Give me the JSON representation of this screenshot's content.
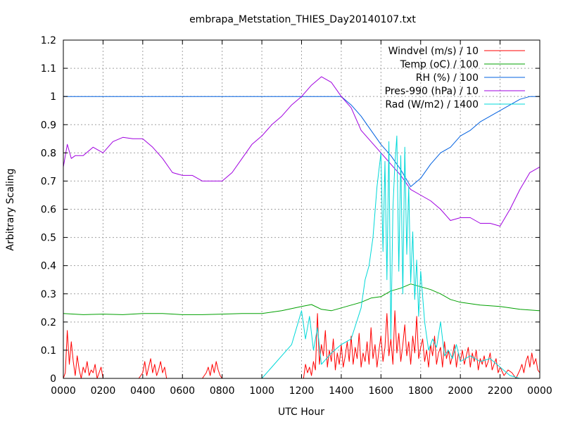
{
  "chart_data": {
    "type": "line",
    "title": "embrapa_Metstation_THIES_Day20140107.txt",
    "xlabel": "UTC Hour",
    "ylabel": "Arbitrary Scaling",
    "xlim": [
      0,
      24
    ],
    "ylim": [
      0,
      1.2
    ],
    "grid": true,
    "legend_position": "top-right",
    "x_ticks": [
      {
        "value": 0,
        "label": "0000"
      },
      {
        "value": 2,
        "label": "0200"
      },
      {
        "value": 4,
        "label": "0400"
      },
      {
        "value": 6,
        "label": "0600"
      },
      {
        "value": 8,
        "label": "0800"
      },
      {
        "value": 10,
        "label": "1000"
      },
      {
        "value": 12,
        "label": "1200"
      },
      {
        "value": 14,
        "label": "1400"
      },
      {
        "value": 16,
        "label": "1600"
      },
      {
        "value": 18,
        "label": "1800"
      },
      {
        "value": 20,
        "label": "2000"
      },
      {
        "value": 22,
        "label": "2200"
      },
      {
        "value": 24,
        "label": "0000"
      }
    ],
    "y_ticks": [
      {
        "value": 0,
        "label": "0"
      },
      {
        "value": 0.1,
        "label": "0.1"
      },
      {
        "value": 0.2,
        "label": "0.2"
      },
      {
        "value": 0.3,
        "label": "0.3"
      },
      {
        "value": 0.4,
        "label": "0.4"
      },
      {
        "value": 0.5,
        "label": "0.5"
      },
      {
        "value": 0.6,
        "label": "0.6"
      },
      {
        "value": 0.7,
        "label": "0.7"
      },
      {
        "value": 0.8,
        "label": "0.8"
      },
      {
        "value": 0.9,
        "label": "0.9"
      },
      {
        "value": 1.0,
        "label": "1"
      },
      {
        "value": 1.1,
        "label": "1.1"
      },
      {
        "value": 1.2,
        "label": "1.2"
      }
    ],
    "series": [
      {
        "name": "Windvel (m/s) / 10",
        "color": "#ff0000",
        "x": [
          0,
          0.1,
          0.2,
          0.3,
          0.4,
          0.5,
          0.6,
          0.7,
          0.8,
          0.9,
          1.0,
          1.1,
          1.2,
          1.3,
          1.4,
          1.5,
          1.6,
          1.7,
          1.8,
          1.9,
          2.0,
          2.2,
          2.4,
          2.6,
          2.8,
          3.0,
          3.2,
          3.4,
          3.6,
          3.8,
          4.0,
          4.1,
          4.2,
          4.3,
          4.4,
          4.5,
          4.6,
          4.7,
          4.8,
          4.9,
          5.0,
          5.1,
          5.2,
          5.4,
          5.6,
          5.8,
          6.0,
          6.2,
          6.4,
          6.6,
          6.8,
          7.0,
          7.2,
          7.3,
          7.4,
          7.5,
          7.6,
          7.7,
          7.8,
          7.9,
          8.0,
          8.5,
          9.0,
          9.5,
          10.0,
          10.5,
          11.0,
          11.5,
          12.0,
          12.1,
          12.2,
          12.3,
          12.4,
          12.5,
          12.6,
          12.7,
          12.8,
          12.9,
          13.0,
          13.1,
          13.2,
          13.3,
          13.4,
          13.5,
          13.6,
          13.7,
          13.8,
          13.9,
          14.0,
          14.1,
          14.2,
          14.3,
          14.4,
          14.5,
          14.6,
          14.7,
          14.8,
          14.9,
          15.0,
          15.1,
          15.2,
          15.3,
          15.4,
          15.5,
          15.6,
          15.7,
          15.8,
          15.9,
          16.0,
          16.1,
          16.2,
          16.3,
          16.4,
          16.5,
          16.6,
          16.7,
          16.8,
          16.9,
          17.0,
          17.1,
          17.2,
          17.3,
          17.4,
          17.5,
          17.6,
          17.7,
          17.8,
          17.9,
          18.0,
          18.1,
          18.2,
          18.3,
          18.4,
          18.5,
          18.6,
          18.7,
          18.8,
          18.9,
          19.0,
          19.1,
          19.2,
          19.3,
          19.4,
          19.5,
          19.6,
          19.7,
          19.8,
          19.9,
          20.0,
          20.1,
          20.2,
          20.3,
          20.4,
          20.5,
          20.6,
          20.7,
          20.8,
          20.9,
          21.0,
          21.1,
          21.2,
          21.3,
          21.4,
          21.5,
          21.6,
          21.7,
          21.8,
          21.9,
          22.0,
          22.2,
          22.4,
          22.6,
          22.8,
          23.0,
          23.1,
          23.2,
          23.3,
          23.4,
          23.5,
          23.6,
          23.7,
          23.8,
          23.9,
          24.0
        ],
        "y": [
          0,
          0.02,
          0.17,
          0.05,
          0.13,
          0.06,
          0.01,
          0.08,
          0.03,
          0,
          0.04,
          0.02,
          0.06,
          0.01,
          0.03,
          0.02,
          0.05,
          0,
          0.02,
          0.04,
          0,
          0,
          0,
          0,
          0,
          0,
          0,
          0,
          0,
          0,
          0.02,
          0.06,
          0.01,
          0.04,
          0.07,
          0.02,
          0.05,
          0.01,
          0.03,
          0.06,
          0.02,
          0.04,
          0,
          0,
          0,
          0,
          0,
          0,
          0,
          0,
          0,
          0,
          0.02,
          0.04,
          0.01,
          0.05,
          0.02,
          0.06,
          0.03,
          0.01,
          0,
          0,
          0,
          0,
          0,
          0,
          0,
          0,
          0,
          0,
          0.05,
          0.02,
          0.04,
          0.01,
          0.06,
          0.03,
          0.23,
          0.05,
          0.12,
          0.08,
          0.17,
          0.04,
          0.1,
          0.06,
          0.14,
          0.03,
          0.09,
          0.05,
          0.12,
          0.04,
          0.08,
          0.13,
          0.06,
          0.15,
          0.05,
          0.11,
          0.07,
          0.16,
          0.04,
          0.09,
          0.06,
          0.13,
          0.05,
          0.18,
          0.07,
          0.12,
          0.04,
          0.1,
          0.15,
          0.06,
          0.11,
          0.23,
          0.08,
          0.14,
          0.05,
          0.24,
          0.09,
          0.16,
          0.06,
          0.12,
          0.19,
          0.08,
          0.13,
          0.05,
          0.15,
          0.09,
          0.22,
          0.07,
          0.11,
          0.14,
          0.06,
          0.1,
          0.04,
          0.12,
          0.08,
          0.15,
          0.05,
          0.09,
          0.11,
          0.04,
          0.13,
          0.07,
          0.1,
          0.05,
          0.08,
          0.12,
          0.04,
          0.09,
          0.06,
          0.1,
          0.05,
          0.08,
          0.11,
          0.04,
          0.09,
          0.06,
          0.1,
          0.03,
          0.07,
          0.05,
          0.08,
          0.04,
          0.06,
          0.09,
          0.03,
          0.05,
          0.07,
          0.02,
          0.04,
          0.01,
          0.03,
          0.02,
          0,
          0.03,
          0.05,
          0.02,
          0.06,
          0.08,
          0.04,
          0.09,
          0.05,
          0.07,
          0.03,
          0.02
        ]
      },
      {
        "name": "Temp (oC) / 100",
        "color": "#00a000",
        "x": [
          0,
          1,
          2,
          3,
          4,
          5,
          6,
          7,
          8,
          9,
          10,
          11,
          12,
          12.5,
          13,
          13.5,
          14,
          14.5,
          15,
          15.5,
          16,
          16.5,
          17,
          17.5,
          18,
          18.5,
          19,
          19.5,
          20,
          21,
          22,
          23,
          24
        ],
        "y": [
          0.23,
          0.226,
          0.228,
          0.226,
          0.23,
          0.23,
          0.226,
          0.226,
          0.228,
          0.23,
          0.23,
          0.24,
          0.255,
          0.262,
          0.245,
          0.24,
          0.25,
          0.26,
          0.27,
          0.285,
          0.29,
          0.31,
          0.32,
          0.335,
          0.325,
          0.315,
          0.3,
          0.28,
          0.27,
          0.26,
          0.255,
          0.245,
          0.24
        ]
      },
      {
        "name": "RH (%) / 100",
        "color": "#0060e0",
        "x": [
          0,
          1,
          2,
          3,
          4,
          5,
          6,
          7,
          8,
          9,
          10,
          11,
          12,
          13,
          14,
          14.5,
          15,
          15.5,
          16,
          16.5,
          17,
          17.5,
          18,
          18.5,
          19,
          19.5,
          20,
          20.5,
          21,
          21.5,
          22,
          22.5,
          23,
          23.5,
          24
        ],
        "y": [
          1,
          1,
          1,
          1,
          1,
          1,
          1,
          1,
          1,
          1,
          1,
          1,
          1,
          1,
          1,
          0.97,
          0.93,
          0.88,
          0.83,
          0.79,
          0.74,
          0.68,
          0.71,
          0.76,
          0.8,
          0.82,
          0.86,
          0.88,
          0.91,
          0.93,
          0.95,
          0.97,
          0.99,
          1.0,
          1.0
        ]
      },
      {
        "name": "Pres-990 (hPa) / 10",
        "color": "#a000e0",
        "x": [
          0,
          0.2,
          0.4,
          0.6,
          0.8,
          1.0,
          1.5,
          2.0,
          2.5,
          3.0,
          3.5,
          4.0,
          4.5,
          5.0,
          5.5,
          6.0,
          6.5,
          7.0,
          7.5,
          8.0,
          8.5,
          9.0,
          9.5,
          10.0,
          10.5,
          11.0,
          11.5,
          12.0,
          12.5,
          13.0,
          13.5,
          13.8,
          14.0,
          14.5,
          15.0,
          15.5,
          16.0,
          16.5,
          17.0,
          17.5,
          18.0,
          18.5,
          19.0,
          19.5,
          20.0,
          20.5,
          21.0,
          21.5,
          22.0,
          22.5,
          23.0,
          23.5,
          24.0
        ],
        "y": [
          0.75,
          0.83,
          0.78,
          0.79,
          0.79,
          0.79,
          0.82,
          0.8,
          0.84,
          0.855,
          0.85,
          0.85,
          0.82,
          0.78,
          0.73,
          0.72,
          0.72,
          0.7,
          0.7,
          0.7,
          0.73,
          0.78,
          0.83,
          0.86,
          0.9,
          0.93,
          0.97,
          1.0,
          1.04,
          1.07,
          1.05,
          1.02,
          1.0,
          0.96,
          0.88,
          0.84,
          0.8,
          0.76,
          0.72,
          0.67,
          0.65,
          0.63,
          0.6,
          0.56,
          0.57,
          0.57,
          0.55,
          0.55,
          0.54,
          0.6,
          0.67,
          0.73,
          0.75
        ]
      },
      {
        "name": "Rad (W/m2) / 1400",
        "color": "#00d8d8",
        "x": [
          0,
          1,
          2,
          3,
          4,
          5,
          6,
          7,
          8,
          9,
          10,
          10.5,
          11,
          11.5,
          12,
          12.2,
          12.4,
          12.6,
          12.8,
          13,
          13.5,
          14,
          14.5,
          15,
          15.2,
          15.4,
          15.6,
          15.8,
          16,
          16.1,
          16.2,
          16.3,
          16.4,
          16.5,
          16.6,
          16.7,
          16.8,
          16.9,
          17,
          17.1,
          17.2,
          17.3,
          17.4,
          17.5,
          17.6,
          17.7,
          17.8,
          17.9,
          18,
          18.2,
          18.4,
          18.6,
          18.8,
          19,
          19.2,
          19.4,
          19.6,
          19.8,
          20,
          20.5,
          21,
          21.5,
          22,
          22.5,
          23,
          24
        ],
        "y": [
          0,
          0,
          0,
          0,
          0,
          0,
          0,
          0,
          0,
          0,
          0,
          0.04,
          0.08,
          0.12,
          0.24,
          0.14,
          0.22,
          0.1,
          0.18,
          0.05,
          0.09,
          0.12,
          0.14,
          0.25,
          0.35,
          0.4,
          0.5,
          0.68,
          0.8,
          0.45,
          0.77,
          0.35,
          0.84,
          0.14,
          0.6,
          0.76,
          0.86,
          0.38,
          0.79,
          0.3,
          0.82,
          0.44,
          0.68,
          0.34,
          0.52,
          0.28,
          0.42,
          0.22,
          0.38,
          0.2,
          0.1,
          0.14,
          0.11,
          0.2,
          0.08,
          0.1,
          0.07,
          0.12,
          0.06,
          0.08,
          0.06,
          0.07,
          0.04,
          0.01,
          0,
          0
        ]
      }
    ]
  }
}
